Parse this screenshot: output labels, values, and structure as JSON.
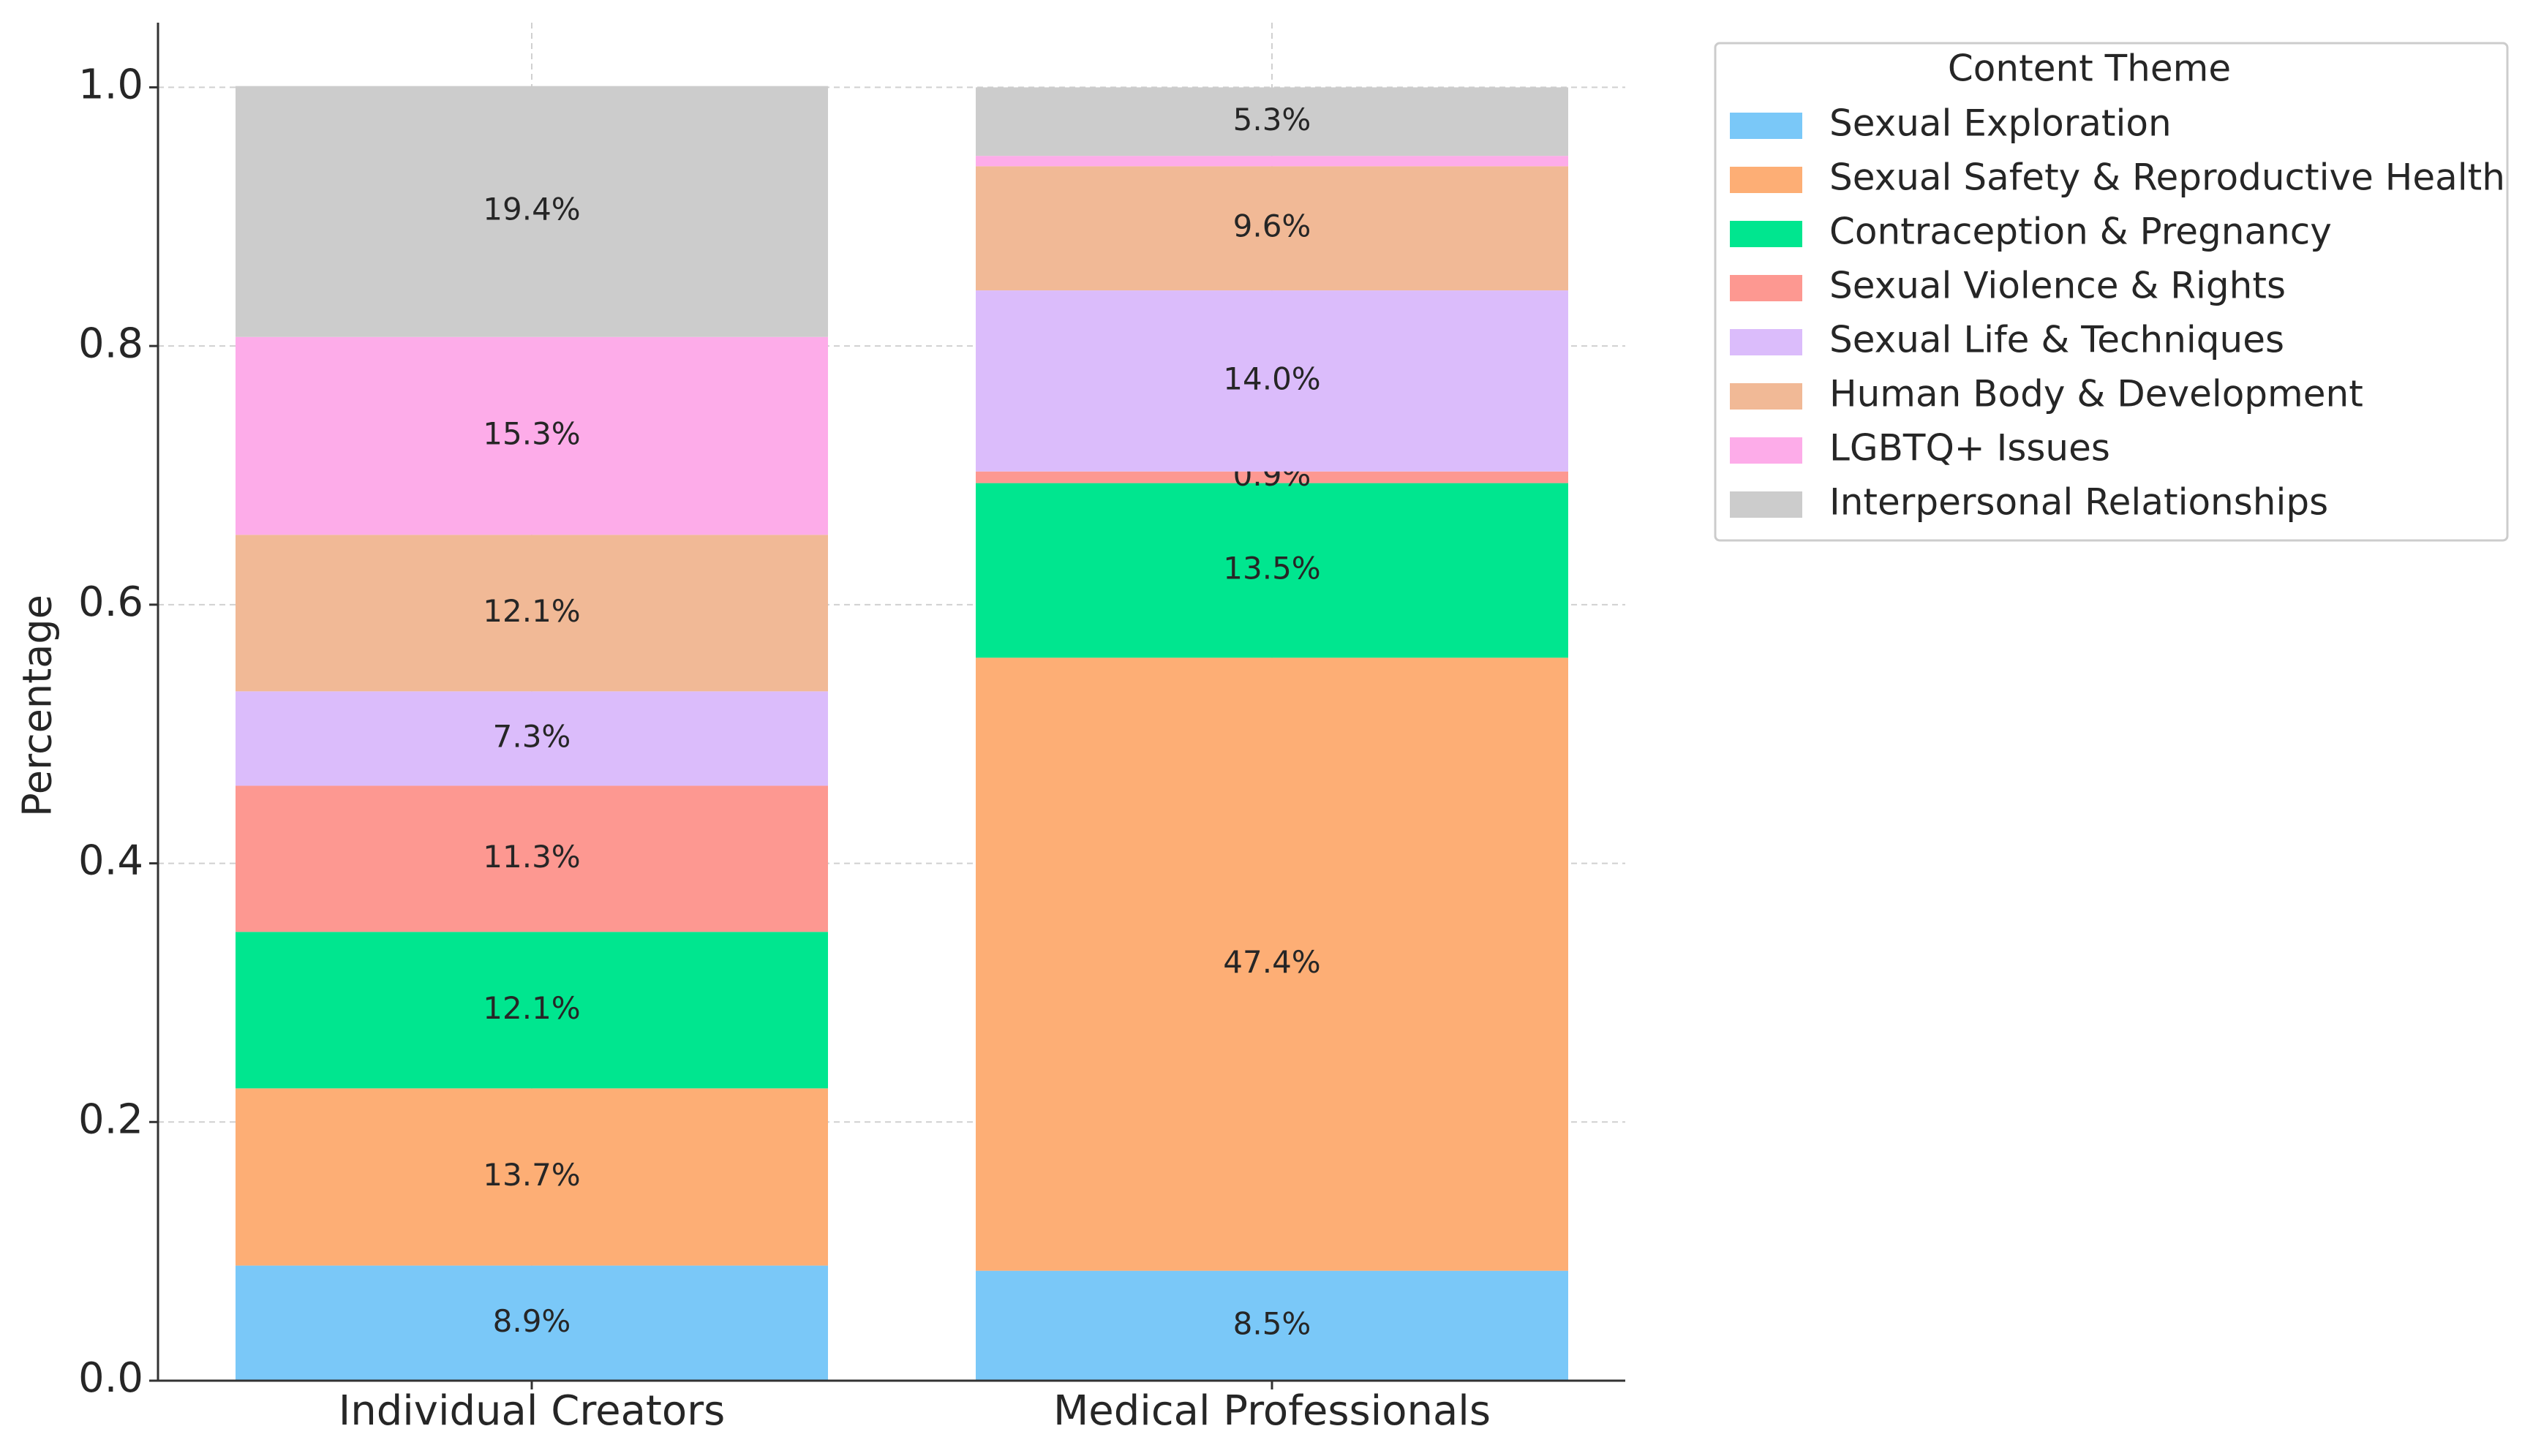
{
  "chart_data": {
    "type": "stacked_bar",
    "categories": [
      "Individual Creators",
      "Medical Professionals"
    ],
    "y_label": "Percentage",
    "legend_title": "Content Theme",
    "legend_position": "upper right outside",
    "grid": true,
    "ylim": [
      0,
      1.05
    ],
    "yticks": [
      {
        "value": 0,
        "label": "0.0"
      },
      0.2,
      0.4,
      0.6,
      0.8,
      {
        "value": 1,
        "label": "1.0"
      }
    ],
    "series": [
      {
        "name": "Sexual Exploration",
        "color": "#7ac8f8",
        "values": [
          0.089,
          0.085
        ],
        "value_labels": [
          "8.9%",
          "8.5%"
        ]
      },
      {
        "name": "Sexual Safety & Reproductive Health",
        "color": "#fdae75",
        "values": [
          0.137,
          0.474
        ],
        "value_labels": [
          "13.7%",
          "47.4%"
        ]
      },
      {
        "name": "Contraception & Pregnancy",
        "color": "#00e68f",
        "values": [
          0.121,
          0.135
        ],
        "value_labels": [
          "12.1%",
          "13.5%"
        ]
      },
      {
        "name": "Sexual Violence & Rights",
        "color": "#fd9891",
        "values": [
          0.113,
          0.009
        ],
        "value_labels": [
          "11.3%",
          "0.9%"
        ]
      },
      {
        "name": "Sexual Life & Techniques",
        "color": "#dbbcfb",
        "values": [
          0.073,
          0.14
        ],
        "value_labels": [
          "7.3%",
          "14.0%"
        ]
      },
      {
        "name": "Human Body & Development",
        "color": "#f1b996",
        "values": [
          0.121,
          0.096
        ],
        "value_labels": [
          "12.1%",
          "9.6%"
        ]
      },
      {
        "name": "LGBTQ+ Issues",
        "color": "#fdace9",
        "values": [
          0.153,
          0.008
        ],
        "value_labels": [
          "15.3%",
          null
        ]
      },
      {
        "name": "Interpersonal Relationships",
        "color": "#cccccc",
        "values": [
          0.194,
          0.053
        ],
        "value_labels": [
          "19.4%",
          "5.3%"
        ]
      }
    ]
  }
}
